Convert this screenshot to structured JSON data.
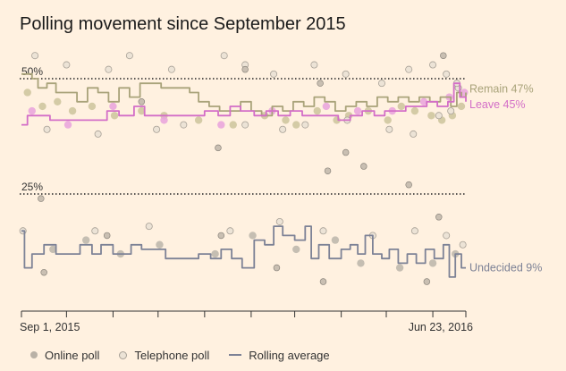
{
  "chart_data": {
    "type": "scatter",
    "title": "Polling movement since September 2015",
    "x_range": [
      "2015-09-01",
      "2016-06-23"
    ],
    "x_tick_labels": {
      "start": "Sep 1, 2015",
      "end": "Jun 23, 2016"
    },
    "y_range": [
      5,
      56
    ],
    "reference_lines": [
      {
        "value": 50,
        "label": "50%"
      },
      {
        "value": 25,
        "label": "25%"
      }
    ],
    "grid": false,
    "legend": {
      "position": "bottom",
      "entries": [
        {
          "label": "Online poll",
          "kind": "online"
        },
        {
          "label": "Telephone poll",
          "kind": "phone"
        },
        {
          "label": "Rolling average",
          "kind": "line"
        }
      ]
    },
    "series": [
      {
        "name": "Remain",
        "end_label": "Remain 47%",
        "color": "#a9a37a",
        "dot_color": "#cfc7a0",
        "rolling_average": [
          [
            "2015-09-01",
            51
          ],
          [
            "2015-09-04",
            51
          ],
          [
            "2015-09-08",
            50
          ],
          [
            "2015-09-12",
            48
          ],
          [
            "2015-09-18",
            49
          ],
          [
            "2015-09-24",
            47
          ],
          [
            "2015-10-01",
            47
          ],
          [
            "2015-10-08",
            45
          ],
          [
            "2015-10-15",
            48
          ],
          [
            "2015-10-22",
            47
          ],
          [
            "2015-10-29",
            45
          ],
          [
            "2015-11-05",
            48
          ],
          [
            "2015-11-12",
            46
          ],
          [
            "2015-11-19",
            49
          ],
          [
            "2015-11-26",
            49
          ],
          [
            "2015-12-03",
            48
          ],
          [
            "2015-12-10",
            48
          ],
          [
            "2015-12-17",
            48
          ],
          [
            "2015-12-22",
            47
          ],
          [
            "2015-12-28",
            45
          ],
          [
            "2016-01-04",
            44
          ],
          [
            "2016-01-11",
            43
          ],
          [
            "2016-01-18",
            43
          ],
          [
            "2016-01-25",
            45
          ],
          [
            "2016-02-01",
            43
          ],
          [
            "2016-02-08",
            42
          ],
          [
            "2016-02-15",
            44
          ],
          [
            "2016-02-22",
            43
          ],
          [
            "2016-02-29",
            45
          ],
          [
            "2016-03-07",
            44
          ],
          [
            "2016-03-14",
            46
          ],
          [
            "2016-03-21",
            45
          ],
          [
            "2016-03-28",
            43
          ],
          [
            "2016-04-04",
            44
          ],
          [
            "2016-04-11",
            45
          ],
          [
            "2016-04-18",
            44
          ],
          [
            "2016-04-25",
            46
          ],
          [
            "2016-05-02",
            45
          ],
          [
            "2016-05-09",
            46
          ],
          [
            "2016-05-16",
            45
          ],
          [
            "2016-05-23",
            46
          ],
          [
            "2016-05-30",
            45
          ],
          [
            "2016-06-06",
            46
          ],
          [
            "2016-06-13",
            44
          ],
          [
            "2016-06-17",
            47
          ],
          [
            "2016-06-20",
            46
          ],
          [
            "2016-06-23",
            47
          ]
        ],
        "online_polls": [
          [
            "2015-09-05",
            47
          ],
          [
            "2015-09-15",
            44
          ],
          [
            "2015-09-25",
            45
          ],
          [
            "2015-10-05",
            43
          ],
          [
            "2015-10-18",
            44
          ],
          [
            "2015-11-02",
            42
          ],
          [
            "2015-11-20",
            43
          ],
          [
            "2015-12-05",
            42
          ],
          [
            "2015-12-28",
            41
          ],
          [
            "2016-01-20",
            40
          ],
          [
            "2016-02-10",
            42
          ],
          [
            "2016-02-24",
            41
          ],
          [
            "2016-03-02",
            40
          ],
          [
            "2016-03-16",
            43
          ],
          [
            "2016-03-29",
            41
          ],
          [
            "2016-04-06",
            42
          ],
          [
            "2016-04-19",
            43
          ],
          [
            "2016-05-02",
            41
          ],
          [
            "2016-05-11",
            44
          ],
          [
            "2016-05-20",
            43
          ],
          [
            "2016-05-31",
            42
          ],
          [
            "2016-06-07",
            41
          ],
          [
            "2016-06-14",
            42
          ],
          [
            "2016-06-20",
            44
          ]
        ],
        "telephone_polls": [
          [
            "2015-09-10",
            55
          ],
          [
            "2015-10-01",
            53
          ],
          [
            "2015-10-29",
            52
          ],
          [
            "2015-11-12",
            55
          ],
          [
            "2015-12-10",
            52
          ],
          [
            "2016-01-14",
            55
          ],
          [
            "2016-01-28",
            53
          ],
          [
            "2016-02-16",
            51
          ],
          [
            "2016-03-14",
            53
          ],
          [
            "2016-04-04",
            51
          ],
          [
            "2016-04-28",
            49
          ],
          [
            "2016-05-16",
            52
          ],
          [
            "2016-06-01",
            53
          ],
          [
            "2016-06-10",
            51
          ],
          [
            "2016-06-18",
            48
          ]
        ]
      },
      {
        "name": "Leave",
        "end_label": "Leave 45%",
        "color": "#d36ec7",
        "dot_color": "#eaa6dd",
        "rolling_average": [
          [
            "2015-09-01",
            40
          ],
          [
            "2015-09-05",
            42
          ],
          [
            "2015-09-12",
            42
          ],
          [
            "2015-09-20",
            41
          ],
          [
            "2015-10-01",
            41
          ],
          [
            "2015-10-10",
            41
          ],
          [
            "2015-10-20",
            41
          ],
          [
            "2015-10-28",
            43
          ],
          [
            "2015-11-05",
            42
          ],
          [
            "2015-11-15",
            44
          ],
          [
            "2015-11-22",
            42
          ],
          [
            "2015-12-01",
            42
          ],
          [
            "2015-12-10",
            42
          ],
          [
            "2015-12-20",
            42
          ],
          [
            "2016-01-01",
            43
          ],
          [
            "2016-01-10",
            42
          ],
          [
            "2016-01-18",
            44
          ],
          [
            "2016-01-25",
            43
          ],
          [
            "2016-02-03",
            42
          ],
          [
            "2016-02-11",
            43
          ],
          [
            "2016-02-19",
            42
          ],
          [
            "2016-02-27",
            43
          ],
          [
            "2016-03-06",
            42
          ],
          [
            "2016-03-14",
            42
          ],
          [
            "2016-03-22",
            42
          ],
          [
            "2016-03-30",
            41
          ],
          [
            "2016-04-07",
            42
          ],
          [
            "2016-04-15",
            43
          ],
          [
            "2016-04-23",
            42
          ],
          [
            "2016-04-30",
            43
          ],
          [
            "2016-05-07",
            43
          ],
          [
            "2016-05-14",
            44
          ],
          [
            "2016-05-21",
            44
          ],
          [
            "2016-05-28",
            45
          ],
          [
            "2016-06-04",
            44
          ],
          [
            "2016-06-11",
            45
          ],
          [
            "2016-06-15",
            49
          ],
          [
            "2016-06-19",
            46
          ],
          [
            "2016-06-23",
            45
          ]
        ],
        "online_polls": [
          [
            "2015-09-08",
            43
          ],
          [
            "2015-10-02",
            40
          ],
          [
            "2015-11-01",
            44
          ],
          [
            "2015-12-05",
            41
          ],
          [
            "2016-01-12",
            40
          ],
          [
            "2016-02-15",
            43
          ],
          [
            "2016-03-22",
            44
          ],
          [
            "2016-04-12",
            43
          ],
          [
            "2016-05-05",
            43
          ],
          [
            "2016-05-26",
            45
          ],
          [
            "2016-06-12",
            46
          ],
          [
            "2016-06-22",
            47
          ]
        ],
        "telephone_polls": [
          [
            "2015-09-18",
            39
          ],
          [
            "2015-10-22",
            38
          ],
          [
            "2015-11-30",
            39
          ],
          [
            "2015-12-18",
            40
          ],
          [
            "2016-01-28",
            40
          ],
          [
            "2016-02-22",
            39
          ],
          [
            "2016-03-08",
            40
          ],
          [
            "2016-04-05",
            41
          ],
          [
            "2016-05-03",
            39
          ],
          [
            "2016-05-19",
            38
          ],
          [
            "2016-06-05",
            42
          ],
          [
            "2016-06-13",
            43
          ],
          [
            "2016-06-17",
            49
          ]
        ]
      },
      {
        "name": "Undecided",
        "end_label": "Undecided 9%",
        "color": "#7d8296",
        "dot_color": "#bfb8ad",
        "rolling_average": [
          [
            "2015-09-01",
            17
          ],
          [
            "2015-09-03",
            9
          ],
          [
            "2015-09-08",
            12
          ],
          [
            "2015-09-16",
            14
          ],
          [
            "2015-09-24",
            12
          ],
          [
            "2015-10-02",
            12
          ],
          [
            "2015-10-10",
            14
          ],
          [
            "2015-10-18",
            12
          ],
          [
            "2015-10-24",
            14
          ],
          [
            "2015-11-01",
            12
          ],
          [
            "2015-11-07",
            12
          ],
          [
            "2015-11-13",
            14
          ],
          [
            "2015-11-20",
            13
          ],
          [
            "2015-11-27",
            13
          ],
          [
            "2015-12-06",
            11
          ],
          [
            "2015-12-13",
            11
          ],
          [
            "2015-12-20",
            11
          ],
          [
            "2015-12-28",
            12
          ],
          [
            "2016-01-05",
            11
          ],
          [
            "2016-01-12",
            13
          ],
          [
            "2016-01-19",
            11
          ],
          [
            "2016-01-26",
            9
          ],
          [
            "2016-02-03",
            15
          ],
          [
            "2016-02-10",
            14
          ],
          [
            "2016-02-16",
            18
          ],
          [
            "2016-02-22",
            16
          ],
          [
            "2016-03-01",
            15
          ],
          [
            "2016-03-08",
            18
          ],
          [
            "2016-03-12",
            11
          ],
          [
            "2016-03-17",
            14
          ],
          [
            "2016-03-24",
            11
          ],
          [
            "2016-04-01",
            13
          ],
          [
            "2016-04-07",
            14
          ],
          [
            "2016-04-12",
            12
          ],
          [
            "2016-04-17",
            16
          ],
          [
            "2016-04-22",
            12
          ],
          [
            "2016-04-28",
            11
          ],
          [
            "2016-05-03",
            13
          ],
          [
            "2016-05-09",
            10
          ],
          [
            "2016-05-15",
            12
          ],
          [
            "2016-05-21",
            10
          ],
          [
            "2016-05-27",
            13
          ],
          [
            "2016-06-02",
            11
          ],
          [
            "2016-06-08",
            14
          ],
          [
            "2016-06-12",
            7
          ],
          [
            "2016-06-16",
            12
          ],
          [
            "2016-06-20",
            9
          ],
          [
            "2016-06-23",
            9
          ]
        ],
        "online_polls": [
          [
            "2015-09-22",
            13
          ],
          [
            "2015-10-14",
            15
          ],
          [
            "2015-11-06",
            12
          ],
          [
            "2015-12-02",
            14
          ],
          [
            "2016-01-08",
            12
          ],
          [
            "2016-02-02",
            16
          ],
          [
            "2016-03-02",
            13
          ],
          [
            "2016-03-28",
            15
          ],
          [
            "2016-04-14",
            10
          ],
          [
            "2016-05-10",
            9
          ],
          [
            "2016-06-01",
            10
          ],
          [
            "2016-06-16",
            12
          ]
        ],
        "telephone_polls": [
          [
            "2015-09-02",
            17
          ],
          [
            "2015-10-20",
            17
          ],
          [
            "2015-11-25",
            18
          ],
          [
            "2016-01-18",
            17
          ],
          [
            "2016-02-20",
            19
          ],
          [
            "2016-03-20",
            17
          ],
          [
            "2016-04-22",
            16
          ],
          [
            "2016-05-20",
            17
          ],
          [
            "2016-06-10",
            16
          ],
          [
            "2016-06-21",
            14
          ]
        ]
      }
    ],
    "extra_dots": [
      [
        "2015-09-14",
        24
      ],
      [
        "2015-09-16",
        8
      ],
      [
        "2015-10-28",
        16
      ],
      [
        "2015-11-20",
        45
      ],
      [
        "2016-01-10",
        35
      ],
      [
        "2016-01-12",
        16
      ],
      [
        "2016-01-28",
        52
      ],
      [
        "2016-02-18",
        9
      ],
      [
        "2016-03-18",
        49
      ],
      [
        "2016-03-20",
        6
      ],
      [
        "2016-03-23",
        30
      ],
      [
        "2016-04-04",
        34
      ],
      [
        "2016-04-16",
        31
      ],
      [
        "2016-05-16",
        27
      ],
      [
        "2016-05-28",
        6
      ],
      [
        "2016-06-05",
        20
      ],
      [
        "2016-06-08",
        55
      ]
    ]
  }
}
